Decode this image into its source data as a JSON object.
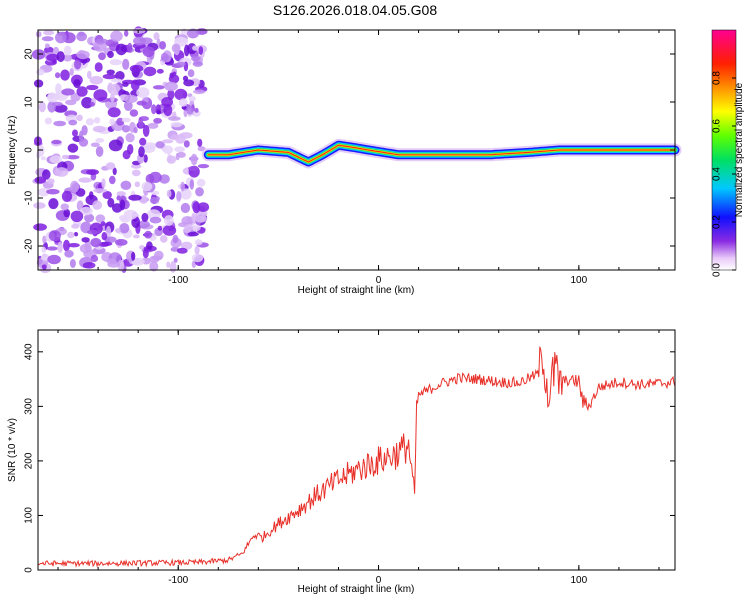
{
  "title": "S126.2026.018.04.05.G08",
  "colors": {
    "scatter_purple": "#8a2be2",
    "line_red": "#e8312a",
    "axis": "#000000"
  },
  "chart_data": [
    {
      "type": "heatmap",
      "title": "S126.2026.018.04.05.G08",
      "xlabel": "Height of straight line (km)",
      "ylabel": "Frequency (Hz)",
      "xlim": [
        -170,
        148
      ],
      "ylim": [
        -25,
        25
      ],
      "x_ticks": [
        -100,
        0,
        100
      ],
      "x_tick_labels": [
        "-100",
        "0",
        "100"
      ],
      "y_ticks": [
        -20,
        -10,
        0,
        10,
        20
      ],
      "y_tick_labels": [
        "-20",
        "-10",
        "0",
        "10",
        "20"
      ],
      "noise_region_x": [
        -170,
        -85
      ],
      "ridge": {
        "description_points_x": [
          -85,
          -75,
          -60,
          -45,
          -35,
          -28,
          -20,
          -12,
          -5,
          10,
          30,
          55,
          75,
          90,
          110,
          148
        ],
        "description_points_y": [
          -1,
          -1,
          0,
          -0.5,
          -2.5,
          -1,
          1,
          0.5,
          0,
          -1,
          -1,
          -1,
          -0.5,
          0,
          0,
          0
        ]
      },
      "colorbar": {
        "label": "Normalized spectral amplitude",
        "range": [
          0,
          1
        ],
        "ticks": [
          0.0,
          0.2,
          0.4,
          0.6,
          0.8
        ],
        "tick_labels": [
          "0.0",
          "0.2",
          "0.4",
          "0.6",
          "0.8"
        ]
      }
    },
    {
      "type": "line",
      "xlabel": "Height of straight line (km)",
      "ylabel": "SNR (10 * v/v)",
      "xlim": [
        -170,
        148
      ],
      "ylim": [
        0,
        440
      ],
      "x_ticks": [
        -100,
        0,
        100
      ],
      "x_tick_labels": [
        "-100",
        "0",
        "100"
      ],
      "y_ticks": [
        0,
        100,
        200,
        300,
        400
      ],
      "y_tick_labels": [
        "0",
        "100",
        "200",
        "300",
        "400"
      ],
      "series": [
        {
          "name": "SNR",
          "x": [
            -170,
            -140,
            -110,
            -90,
            -75,
            -68,
            -62,
            -58,
            -50,
            -40,
            -30,
            -20,
            -10,
            0,
            10,
            15,
            18,
            19,
            20,
            25,
            30,
            40,
            50,
            60,
            70,
            80,
            82,
            85,
            88,
            90,
            95,
            100,
            102,
            105,
            110,
            120,
            130,
            140,
            148
          ],
          "y": [
            12,
            12,
            13,
            14,
            18,
            30,
            65,
            60,
            85,
            110,
            140,
            165,
            185,
            200,
            215,
            230,
            135,
            300,
            320,
            330,
            340,
            352,
            350,
            345,
            343,
            360,
            395,
            320,
            370,
            345,
            348,
            345,
            308,
            300,
            335,
            345,
            340,
            342,
            345
          ]
        }
      ]
    }
  ]
}
